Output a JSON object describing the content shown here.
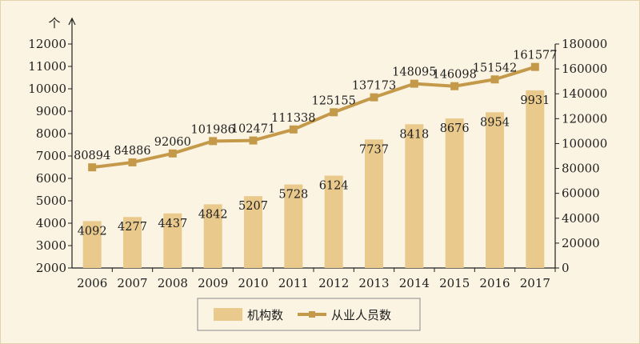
{
  "chart_data": {
    "type": "bar",
    "categories": [
      "2006",
      "2007",
      "2008",
      "2009",
      "2010",
      "2011",
      "2012",
      "2013",
      "2014",
      "2015",
      "2016",
      "2017"
    ],
    "series": [
      {
        "name": "机构数",
        "type": "bar",
        "axis": "left",
        "values": [
          4092,
          4277,
          4437,
          4842,
          5207,
          5728,
          6124,
          7737,
          8418,
          8676,
          8954,
          9931
        ]
      },
      {
        "name": "从业人员数",
        "type": "line",
        "axis": "right",
        "values": [
          80894,
          84886,
          92060,
          101986,
          102471,
          111338,
          125155,
          137173,
          148095,
          146098,
          151542,
          161577
        ]
      }
    ],
    "y_left": {
      "unit_label": "个",
      "ylim": [
        2000,
        12000
      ],
      "ticks": [
        2000,
        3000,
        4000,
        5000,
        6000,
        7000,
        8000,
        9000,
        10000,
        11000,
        12000
      ]
    },
    "y_right": {
      "ylim": [
        0,
        180000
      ],
      "ticks": [
        0,
        20000,
        40000,
        60000,
        80000,
        100000,
        120000,
        140000,
        160000,
        180000
      ]
    },
    "legend": {
      "position": "bottom"
    },
    "colors": {
      "bar": "#E9C98C",
      "line": "#C49A4A",
      "axis": "#1E1E1E",
      "background": "#FBF4E3"
    }
  }
}
